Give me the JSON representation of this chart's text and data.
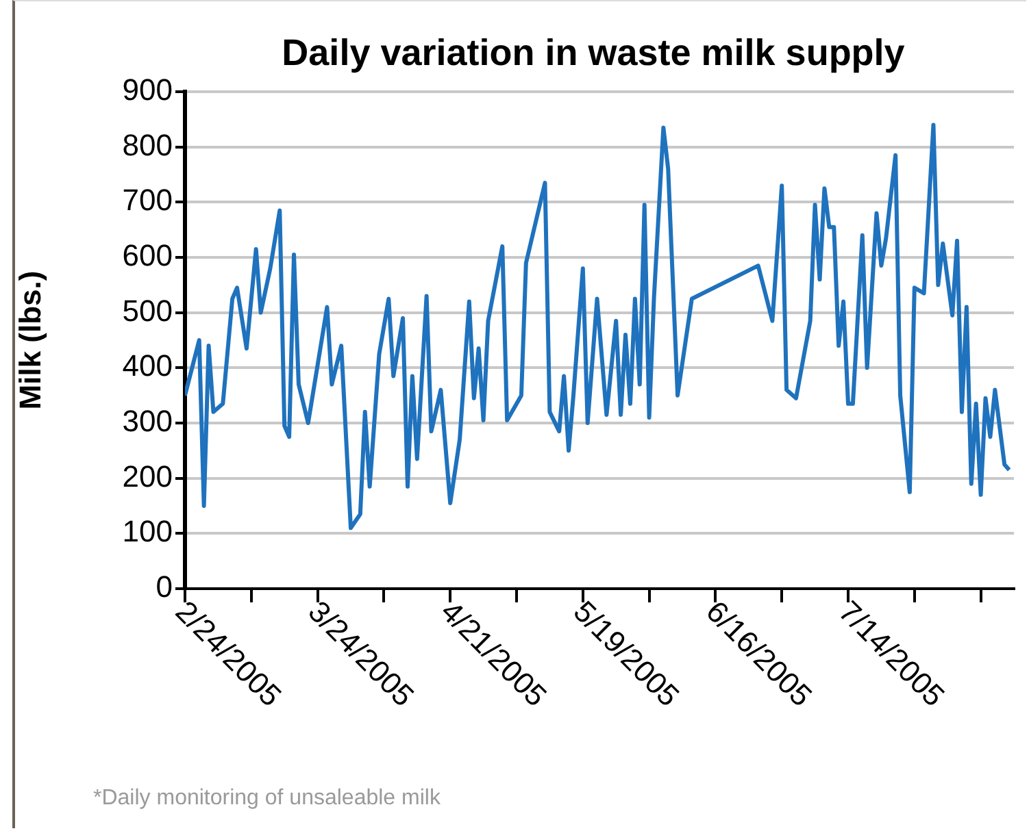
{
  "chart_data": {
    "type": "line",
    "title": "Daily variation in waste milk supply",
    "ylabel": "Milk (lbs.)",
    "annotations": [
      "*Daily monitoring of unsaleable milk"
    ],
    "x": [
      "2005-02-24",
      "2005-02-27",
      "2005-02-28",
      "2005-03-01",
      "2005-03-02",
      "2005-03-04",
      "2005-03-06",
      "2005-03-07",
      "2005-03-09",
      "2005-03-11",
      "2005-03-12",
      "2005-03-14",
      "2005-03-16",
      "2005-03-17",
      "2005-03-18",
      "2005-03-19",
      "2005-03-20",
      "2005-03-22",
      "2005-03-26",
      "2005-03-27",
      "2005-03-29",
      "2005-03-31",
      "2005-04-02",
      "2005-04-03",
      "2005-04-04",
      "2005-04-06",
      "2005-04-08",
      "2005-04-09",
      "2005-04-11",
      "2005-04-12",
      "2005-04-13",
      "2005-04-14",
      "2005-04-16",
      "2005-04-17",
      "2005-04-19",
      "2005-04-21",
      "2005-04-23",
      "2005-04-25",
      "2005-04-26",
      "2005-04-27",
      "2005-04-28",
      "2005-04-29",
      "2005-05-02",
      "2005-05-03",
      "2005-05-06",
      "2005-05-07",
      "2005-05-11",
      "2005-05-12",
      "2005-05-14",
      "2005-05-15",
      "2005-05-16",
      "2005-05-17",
      "2005-05-19",
      "2005-05-20",
      "2005-05-22",
      "2005-05-24",
      "2005-05-26",
      "2005-05-27",
      "2005-05-28",
      "2005-05-29",
      "2005-05-30",
      "2005-05-31",
      "2005-06-01",
      "2005-06-02",
      "2005-06-03",
      "2005-06-05",
      "2005-06-06",
      "2005-06-08",
      "2005-06-11",
      "2005-06-25",
      "2005-06-28",
      "2005-06-30",
      "2005-07-01",
      "2005-07-03",
      "2005-07-06",
      "2005-07-07",
      "2005-07-08",
      "2005-07-09",
      "2005-07-10",
      "2005-07-11",
      "2005-07-12",
      "2005-07-13",
      "2005-07-14",
      "2005-07-15",
      "2005-07-17",
      "2005-07-18",
      "2005-07-20",
      "2005-07-21",
      "2005-07-22",
      "2005-07-24",
      "2005-07-25",
      "2005-07-27",
      "2005-07-28",
      "2005-07-30",
      "2005-08-01",
      "2005-08-02",
      "2005-08-03",
      "2005-08-05",
      "2005-08-06",
      "2005-08-07",
      "2005-08-08",
      "2005-08-09",
      "2005-08-10",
      "2005-08-11",
      "2005-08-12",
      "2005-08-13",
      "2005-08-14",
      "2005-08-16",
      "2005-08-17"
    ],
    "series": [
      {
        "color": "#1f72bd",
        "values": [
          350,
          450,
          150,
          440,
          320,
          335,
          525,
          545,
          435,
          615,
          500,
          580,
          685,
          295,
          275,
          605,
          370,
          300,
          510,
          370,
          440,
          110,
          135,
          320,
          185,
          425,
          525,
          385,
          490,
          185,
          385,
          235,
          530,
          285,
          360,
          155,
          270,
          520,
          345,
          435,
          305,
          485,
          620,
          305,
          350,
          590,
          735,
          320,
          285,
          385,
          250,
          350,
          580,
          300,
          525,
          315,
          485,
          315,
          460,
          335,
          525,
          370,
          695,
          310,
          525,
          835,
          760,
          350,
          525,
          585,
          485,
          730,
          360,
          345,
          485,
          695,
          560,
          725,
          655,
          655,
          440,
          520,
          335,
          335,
          640,
          400,
          680,
          585,
          635,
          785,
          350,
          175,
          545,
          535,
          840,
          550,
          625,
          495,
          630,
          320,
          510,
          190,
          335,
          170,
          345,
          275,
          360,
          225,
          215
        ]
      }
    ],
    "xlim": [
      "2005-02-24",
      "2005-08-18"
    ],
    "xticks": [
      {
        "value": "2005-02-24",
        "label": "2/24/2005"
      },
      {
        "value": "2005-03-10",
        "label": null
      },
      {
        "value": "2005-03-24",
        "label": "3/24/2005"
      },
      {
        "value": "2005-04-07",
        "label": null
      },
      {
        "value": "2005-04-21",
        "label": "4/21/2005"
      },
      {
        "value": "2005-05-05",
        "label": null
      },
      {
        "value": "2005-05-19",
        "label": "5/19/2005"
      },
      {
        "value": "2005-06-02",
        "label": null
      },
      {
        "value": "2005-06-16",
        "label": "6/16/2005"
      },
      {
        "value": "2005-06-30",
        "label": null
      },
      {
        "value": "2005-07-14",
        "label": "7/14/2005"
      },
      {
        "value": "2005-07-28",
        "label": null
      },
      {
        "value": "2005-08-11",
        "label": null
      }
    ],
    "ylim": [
      0,
      900
    ],
    "yticks": [
      0,
      100,
      200,
      300,
      400,
      500,
      600,
      700,
      800,
      900
    ],
    "grid": "y",
    "legend": false,
    "marker": "none",
    "line_style": "solid"
  }
}
